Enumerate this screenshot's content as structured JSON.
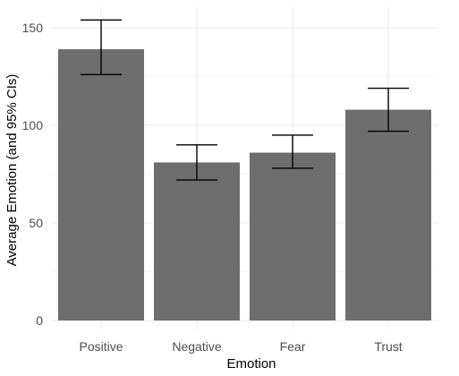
{
  "chart_data": {
    "type": "bar",
    "categories": [
      "Positive",
      "Negative",
      "Fear",
      "Trust"
    ],
    "values": [
      139,
      81,
      86,
      108
    ],
    "ci_lower": [
      126,
      72,
      78,
      97
    ],
    "ci_upper": [
      154,
      90,
      95,
      119
    ],
    "xlabel": "Emotion",
    "ylabel": "Average Emotion (and 95% CIs)",
    "ylim": [
      0,
      160
    ],
    "yticks": [
      0,
      50,
      100,
      150
    ],
    "grid": true,
    "colors": {
      "bar": "#6e6e6e",
      "error_bar": "#000000",
      "grid": "#ebebeb"
    }
  }
}
